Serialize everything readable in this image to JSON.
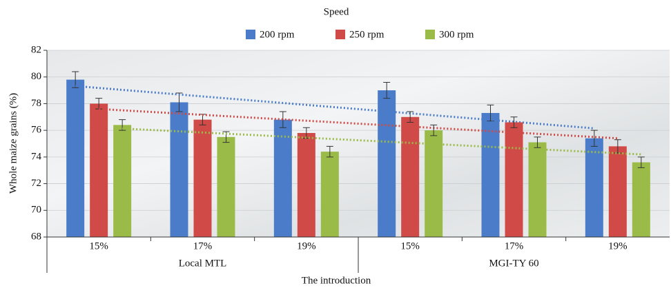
{
  "chart_data": {
    "type": "bar",
    "legend_title": "Speed",
    "x_label": "The introduction",
    "y_label": "Whole maize grains (%)",
    "categories": [
      "15%",
      "17%",
      "19%",
      "15%",
      "17%",
      "19%"
    ],
    "groups": [
      "Local MTL",
      "MGI-TY 60"
    ],
    "series": [
      {
        "name": "200 rpm",
        "color": "#4a7cc9",
        "values": [
          79.8,
          78.1,
          76.8,
          79.0,
          77.3,
          75.4
        ],
        "errors": [
          0.6,
          0.7,
          0.6,
          0.6,
          0.6,
          0.6
        ]
      },
      {
        "name": "250 rpm",
        "color": "#d04a47",
        "values": [
          78.0,
          76.8,
          75.8,
          77.0,
          76.6,
          74.8
        ],
        "errors": [
          0.4,
          0.4,
          0.4,
          0.4,
          0.4,
          0.5
        ]
      },
      {
        "name": "300 rpm",
        "color": "#9bbb48",
        "values": [
          76.4,
          75.5,
          74.4,
          76.0,
          75.1,
          73.6
        ],
        "errors": [
          0.4,
          0.4,
          0.4,
          0.4,
          0.4,
          0.4
        ]
      }
    ],
    "ylim": [
      68,
      82
    ],
    "yticks": [
      68,
      70,
      72,
      74,
      76,
      78,
      80,
      82
    ],
    "grid": true,
    "trendline": true,
    "legend": "top"
  }
}
